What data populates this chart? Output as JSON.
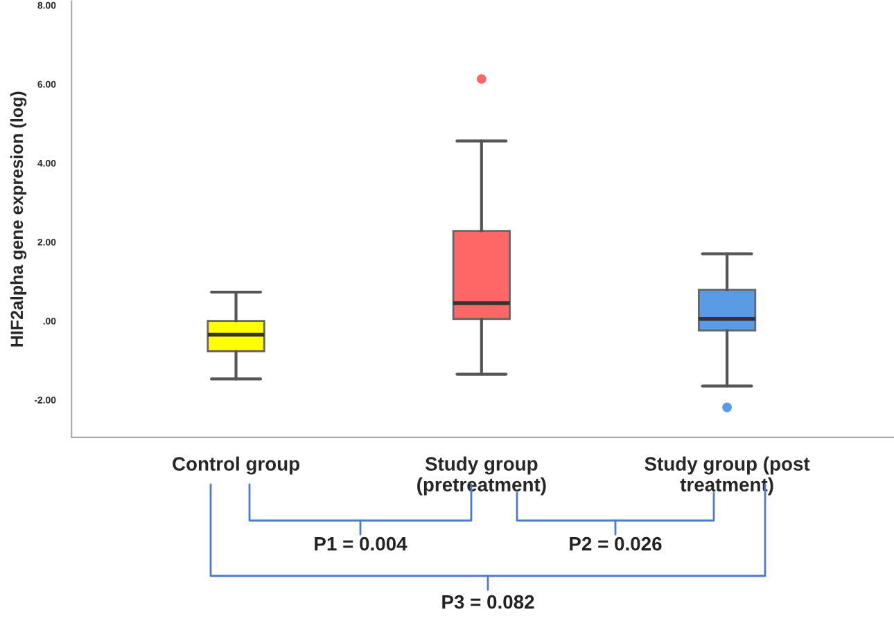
{
  "chart_data": {
    "type": "box",
    "ylabel": "HIF2alpha gene expresion (log)",
    "categories": [
      "Control group",
      "Study group\n(pretreatment)",
      "Study group (post\ntreatment)"
    ],
    "colors": [
      "#ffff00",
      "#ff6666",
      "#5a9be6"
    ],
    "boxes": [
      {
        "low": -1.47,
        "q1": -0.77,
        "median": -0.35,
        "q3": 0.0,
        "high": 0.73
      },
      {
        "low": -1.35,
        "q1": 0.05,
        "median": 0.45,
        "q3": 2.28,
        "high": 4.56,
        "outliers": [
          6.13
        ]
      },
      {
        "low": -1.65,
        "q1": -0.24,
        "median": 0.05,
        "q3": 0.79,
        "high": 1.7,
        "outliers": [
          -2.19
        ]
      }
    ],
    "ylim": [
      -2.95,
      8.1
    ],
    "yticks": [
      {
        "value": -2,
        "label": "-2.00"
      },
      {
        "value": 0,
        "label": ".00"
      },
      {
        "value": 2,
        "label": "2.00"
      },
      {
        "value": 4,
        "label": "4.00"
      },
      {
        "value": 6,
        "label": "6.00"
      },
      {
        "value": 8,
        "label": "8.00"
      }
    ],
    "grid": false,
    "annotations": [
      "P1 = 0.004",
      "P2 = 0.026",
      "P3 = 0.082"
    ]
  }
}
